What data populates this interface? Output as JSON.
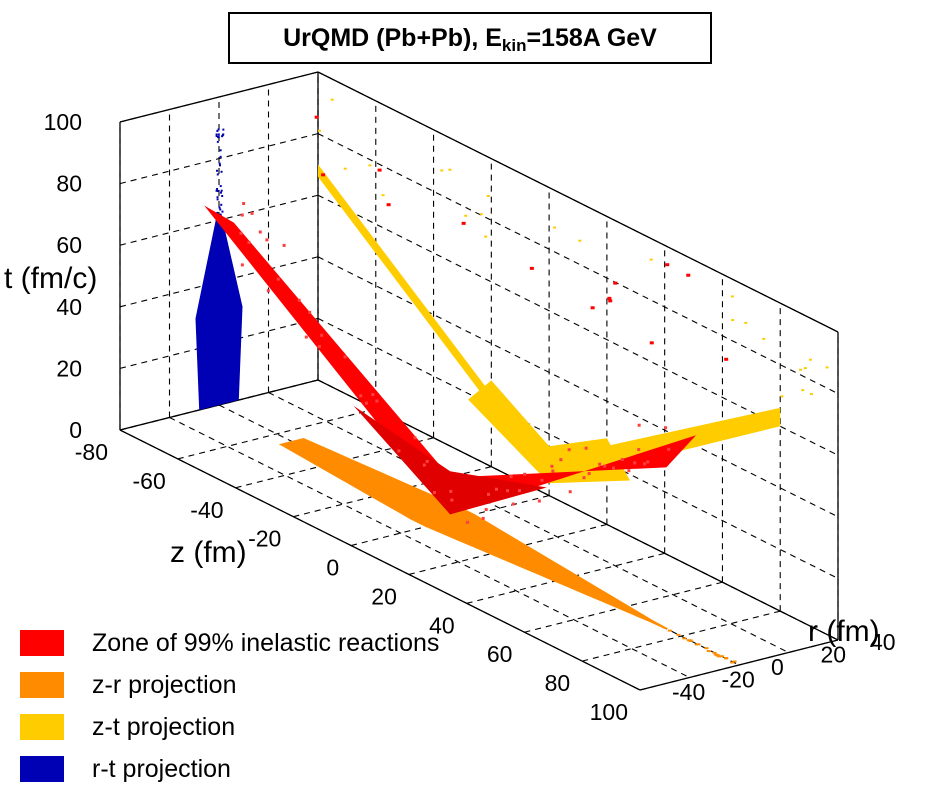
{
  "chart_data": {
    "type": "scatter",
    "title": {
      "prefix": "UrQMD (Pb+Pb), E",
      "subscript": "kin",
      "suffix": "=158A GeV"
    },
    "axes": {
      "t": {
        "label": "t (fm/c)",
        "ticks": [
          "0",
          "20",
          "40",
          "60",
          "80",
          "100"
        ],
        "range": [
          0,
          100
        ]
      },
      "z": {
        "label": "z (fm)",
        "ticks": [
          "-80",
          "-60",
          "-40",
          "-20",
          "0",
          "20",
          "40",
          "60",
          "80",
          "100"
        ],
        "range": [
          -80,
          100
        ]
      },
      "r": {
        "label": "r (fm)",
        "ticks": [
          "-40",
          "-20",
          "0",
          "20",
          "40"
        ],
        "range": [
          -40,
          40
        ]
      }
    },
    "grid": true,
    "legend": {
      "position": "bottom-left",
      "entries": [
        {
          "label": "Zone of 99% inelastic reactions",
          "color": "#ff0000"
        },
        {
          "label": "z-r projection",
          "color": "#ff8c00"
        },
        {
          "label": "z-t projection",
          "color": "#ffcc00"
        },
        {
          "label": "r-t projection",
          "color": "#0000b4"
        }
      ]
    },
    "series": [
      {
        "name": "Zone of 99% inelastic reactions",
        "shape": "V-shaped light-cone hyperbola in z-t, centered r=0",
        "points_z_t": [
          [
            -80,
            62
          ],
          [
            -60,
            47
          ],
          [
            -40,
            33
          ],
          [
            -20,
            18
          ],
          [
            0,
            4
          ],
          [
            20,
            18
          ],
          [
            40,
            33
          ],
          [
            60,
            47
          ],
          [
            80,
            62
          ]
        ]
      },
      {
        "name": "z-r projection",
        "shape": "elongated band at t=0",
        "points_z_r": [
          [
            -60,
            0
          ],
          [
            -20,
            0
          ],
          [
            0,
            0
          ],
          [
            20,
            0
          ],
          [
            60,
            0
          ],
          [
            100,
            0
          ]
        ]
      },
      {
        "name": "z-t projection",
        "shape": "V-shape on back wall (r=40)",
        "points_z_t": [
          [
            -80,
            62
          ],
          [
            -40,
            33
          ],
          [
            0,
            4
          ],
          [
            40,
            33
          ],
          [
            80,
            62
          ]
        ]
      },
      {
        "name": "r-t projection",
        "shape": "narrow teardrop at z=-80 wall, r in [-10,10]",
        "points_r_t": [
          [
            0,
            0
          ],
          [
            -8,
            20
          ],
          [
            8,
            20
          ],
          [
            -6,
            50
          ],
          [
            6,
            50
          ],
          [
            0,
            90
          ]
        ]
      }
    ]
  }
}
